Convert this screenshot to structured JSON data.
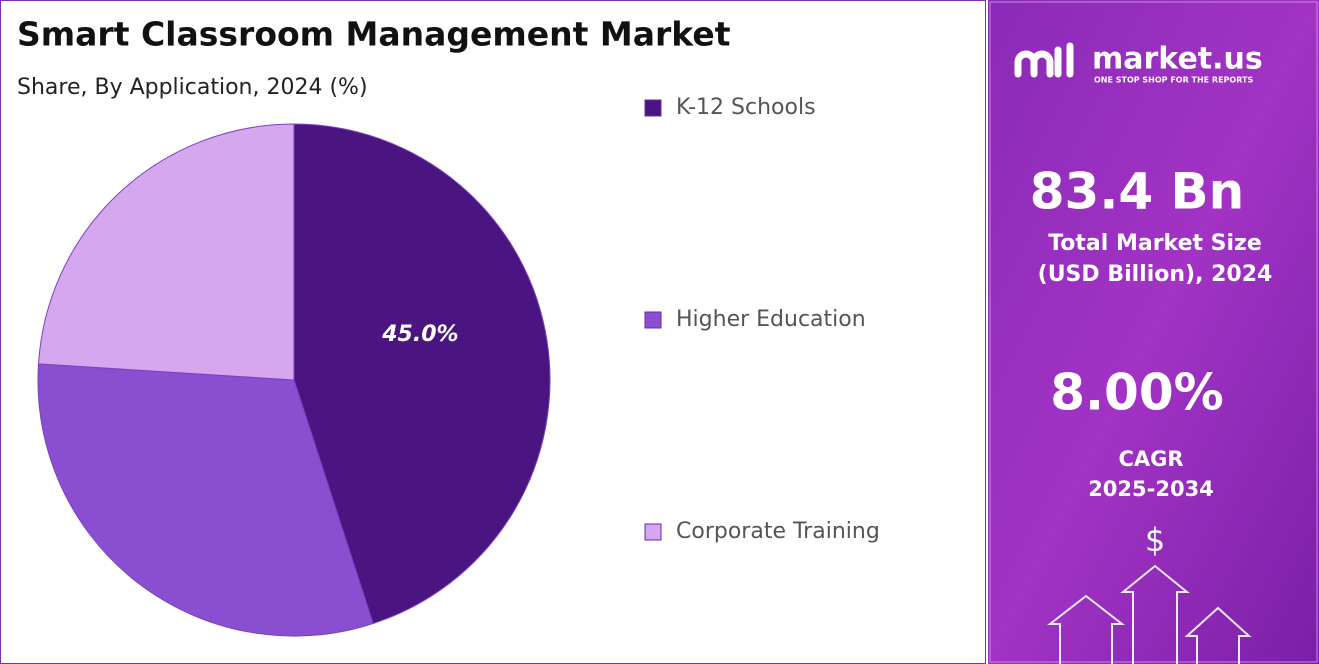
{
  "chart_data": {
    "type": "pie",
    "title": "Smart Classroom Management Market",
    "subtitle": "Share, By Application, 2024 (%)",
    "categories": [
      "K-12 Schools",
      "Higher Education",
      "Corporate Training"
    ],
    "values": [
      45.0,
      31,
      24
    ],
    "value_labels": [
      "45.0%",
      null,
      null
    ],
    "colors": [
      "#4a1580",
      "#8a4fd1",
      "#d4a7ee"
    ],
    "legend": "right"
  },
  "panel": {
    "brand": "market.us",
    "tagline": "ONE STOP SHOP FOR THE REPORTS",
    "market_size": "83.4 Bn",
    "market_size_label_1": "Total Market Size",
    "market_size_label_2": "(USD Billion), 2024",
    "cagr": "8.00%",
    "cagr_label": "CAGR",
    "cagr_period": "2025-2034",
    "symbol": "$"
  }
}
